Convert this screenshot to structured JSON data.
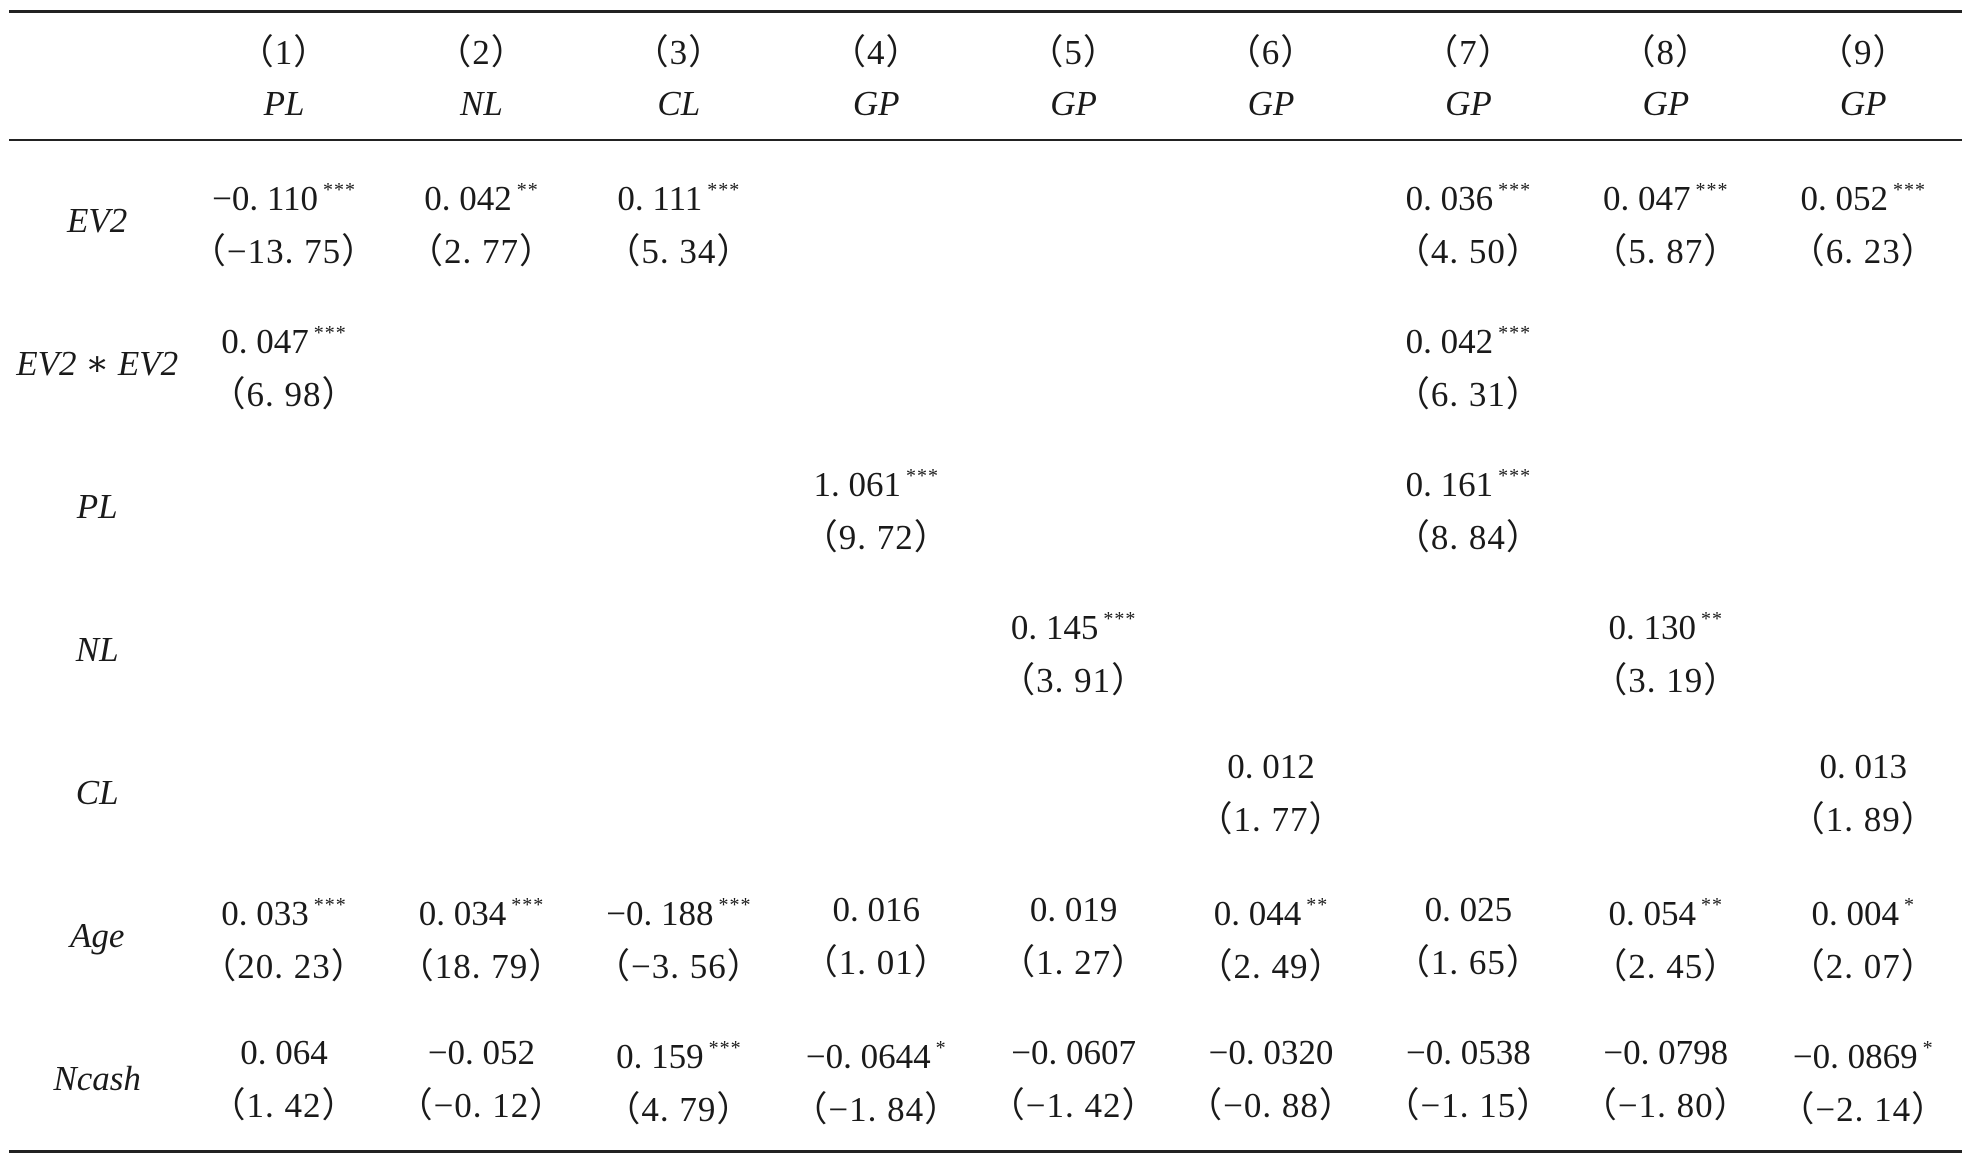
{
  "columns": [
    {
      "num": "（1）",
      "dep": "PL"
    },
    {
      "num": "（2）",
      "dep": "NL"
    },
    {
      "num": "（3）",
      "dep": "CL"
    },
    {
      "num": "（4）",
      "dep": "GP"
    },
    {
      "num": "（5）",
      "dep": "GP"
    },
    {
      "num": "（6）",
      "dep": "GP"
    },
    {
      "num": "（7）",
      "dep": "GP"
    },
    {
      "num": "（8）",
      "dep": "GP"
    },
    {
      "num": "（9）",
      "dep": "GP"
    }
  ],
  "rows": [
    {
      "label": "EV2",
      "cells": [
        {
          "coef": "−0. 110",
          "stars": "***",
          "t": "（−13. 75）"
        },
        {
          "coef": "0. 042",
          "stars": "**",
          "t": "（2. 77）"
        },
        {
          "coef": "0. 111",
          "stars": "***",
          "t": "（5. 34）"
        },
        {
          "coef": "",
          "stars": "",
          "t": ""
        },
        {
          "coef": "",
          "stars": "",
          "t": ""
        },
        {
          "coef": "",
          "stars": "",
          "t": ""
        },
        {
          "coef": "0. 036",
          "stars": "***",
          "t": "（4. 50）"
        },
        {
          "coef": "0. 047",
          "stars": "***",
          "t": "（5. 87）"
        },
        {
          "coef": "0. 052",
          "stars": "***",
          "t": "（6. 23）"
        }
      ]
    },
    {
      "label": "EV2 ∗ EV2",
      "cells": [
        {
          "coef": "0. 047",
          "stars": "***",
          "t": "（6. 98）"
        },
        {
          "coef": "",
          "stars": "",
          "t": ""
        },
        {
          "coef": "",
          "stars": "",
          "t": ""
        },
        {
          "coef": "",
          "stars": "",
          "t": ""
        },
        {
          "coef": "",
          "stars": "",
          "t": ""
        },
        {
          "coef": "",
          "stars": "",
          "t": ""
        },
        {
          "coef": "0. 042",
          "stars": "***",
          "t": "（6. 31）"
        },
        {
          "coef": "",
          "stars": "",
          "t": ""
        },
        {
          "coef": "",
          "stars": "",
          "t": ""
        }
      ]
    },
    {
      "label": "PL",
      "cells": [
        {
          "coef": "",
          "stars": "",
          "t": ""
        },
        {
          "coef": "",
          "stars": "",
          "t": ""
        },
        {
          "coef": "",
          "stars": "",
          "t": ""
        },
        {
          "coef": "1. 061",
          "stars": "***",
          "t": "（9. 72）"
        },
        {
          "coef": "",
          "stars": "",
          "t": ""
        },
        {
          "coef": "",
          "stars": "",
          "t": ""
        },
        {
          "coef": "0. 161",
          "stars": "***",
          "t": "（8. 84）"
        },
        {
          "coef": "",
          "stars": "",
          "t": ""
        },
        {
          "coef": "",
          "stars": "",
          "t": ""
        }
      ]
    },
    {
      "label": "NL",
      "cells": [
        {
          "coef": "",
          "stars": "",
          "t": ""
        },
        {
          "coef": "",
          "stars": "",
          "t": ""
        },
        {
          "coef": "",
          "stars": "",
          "t": ""
        },
        {
          "coef": "",
          "stars": "",
          "t": ""
        },
        {
          "coef": "0. 145",
          "stars": "***",
          "t": "（3. 91）"
        },
        {
          "coef": "",
          "stars": "",
          "t": ""
        },
        {
          "coef": "",
          "stars": "",
          "t": ""
        },
        {
          "coef": "0. 130",
          "stars": "**",
          "t": "（3. 19）"
        },
        {
          "coef": "",
          "stars": "",
          "t": ""
        }
      ]
    },
    {
      "label": "CL",
      "cells": [
        {
          "coef": "",
          "stars": "",
          "t": ""
        },
        {
          "coef": "",
          "stars": "",
          "t": ""
        },
        {
          "coef": "",
          "stars": "",
          "t": ""
        },
        {
          "coef": "",
          "stars": "",
          "t": ""
        },
        {
          "coef": "",
          "stars": "",
          "t": ""
        },
        {
          "coef": "0. 012",
          "stars": "",
          "t": "（1. 77）"
        },
        {
          "coef": "",
          "stars": "",
          "t": ""
        },
        {
          "coef": "",
          "stars": "",
          "t": ""
        },
        {
          "coef": "0. 013",
          "stars": "",
          "t": "（1. 89）"
        }
      ]
    },
    {
      "label": "Age",
      "cells": [
        {
          "coef": "0. 033",
          "stars": "***",
          "t": "（20. 23）"
        },
        {
          "coef": "0. 034",
          "stars": "***",
          "t": "（18. 79）"
        },
        {
          "coef": "−0. 188",
          "stars": "***",
          "t": "（−3. 56）"
        },
        {
          "coef": "0. 016",
          "stars": "",
          "t": "（1. 01）"
        },
        {
          "coef": "0. 019",
          "stars": "",
          "t": "（1. 27）"
        },
        {
          "coef": "0. 044",
          "stars": "**",
          "t": "（2. 49）"
        },
        {
          "coef": "0. 025",
          "stars": "",
          "t": "（1. 65）"
        },
        {
          "coef": "0. 054",
          "stars": "**",
          "t": "（2. 45）"
        },
        {
          "coef": "0. 004",
          "stars": "*",
          "t": "（2. 07）"
        }
      ]
    },
    {
      "label": "Ncash",
      "cells": [
        {
          "coef": "0. 064",
          "stars": "",
          "t": "（1. 42）"
        },
        {
          "coef": "−0. 052",
          "stars": "",
          "t": "（−0. 12）"
        },
        {
          "coef": "0. 159",
          "stars": "***",
          "t": "（4. 79）"
        },
        {
          "coef": "−0. 0644",
          "stars": "*",
          "t": "（−1. 84）"
        },
        {
          "coef": "−0. 0607",
          "stars": "",
          "t": "（−1. 42）"
        },
        {
          "coef": "−0. 0320",
          "stars": "",
          "t": "（−0. 88）"
        },
        {
          "coef": "−0. 0538",
          "stars": "",
          "t": "（−1. 15）"
        },
        {
          "coef": "−0. 0798",
          "stars": "",
          "t": "（−1. 80）"
        },
        {
          "coef": "−0. 0869",
          "stars": "*",
          "t": "（−2. 14）"
        }
      ]
    }
  ]
}
